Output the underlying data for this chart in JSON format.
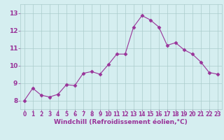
{
  "x": [
    0,
    1,
    2,
    3,
    4,
    5,
    6,
    7,
    8,
    9,
    10,
    11,
    12,
    13,
    14,
    15,
    16,
    17,
    18,
    19,
    20,
    21,
    22,
    23
  ],
  "y": [
    8.0,
    8.7,
    8.3,
    8.2,
    8.35,
    8.9,
    8.85,
    9.55,
    9.65,
    9.5,
    10.05,
    10.65,
    10.65,
    12.2,
    12.85,
    12.6,
    12.2,
    11.15,
    11.3,
    10.9,
    10.65,
    10.2,
    9.6,
    9.5
  ],
  "line_color": "#993399",
  "marker": "D",
  "marker_size": 2.5,
  "background_color": "#d5eef0",
  "grid_color": "#aacccc",
  "xlabel": "Windchill (Refroidissement éolien,°C)",
  "xlabel_color": "#993399",
  "tick_color": "#993399",
  "ylim": [
    7.5,
    13.5
  ],
  "xlim": [
    -0.5,
    23.5
  ],
  "yticks": [
    8,
    9,
    10,
    11,
    12,
    13
  ],
  "xticks": [
    0,
    1,
    2,
    3,
    4,
    5,
    6,
    7,
    8,
    9,
    10,
    11,
    12,
    13,
    14,
    15,
    16,
    17,
    18,
    19,
    20,
    21,
    22,
    23
  ],
  "tick_fontsize": 5.5,
  "ylabel_fontsize": 6.5,
  "xlabel_fontsize": 6.5
}
